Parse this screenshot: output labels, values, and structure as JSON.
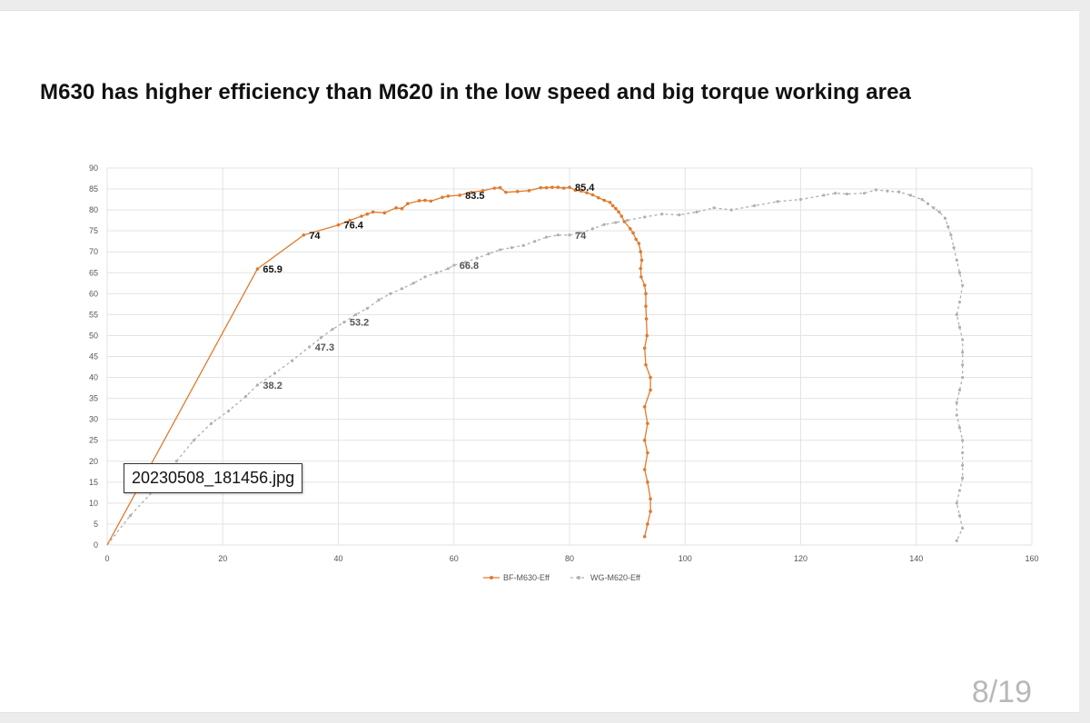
{
  "slide": {
    "title": "M630 has higher efficiency than M620 in the low speed and big torque working area",
    "page_counter": "8/19",
    "file_label": "20230508_181456.jpg"
  },
  "colors": {
    "m630": "#e07b2e",
    "m620": "#b0b0b0",
    "grid": "#e3e3e3"
  },
  "chart_data": {
    "type": "scatter",
    "title": "",
    "xlabel": "",
    "ylabel": "",
    "xlim": [
      0,
      160
    ],
    "ylim": [
      0,
      90
    ],
    "x_ticks": [
      0,
      20,
      40,
      60,
      80,
      100,
      120,
      140,
      160
    ],
    "y_ticks": [
      0,
      5,
      10,
      15,
      20,
      25,
      30,
      35,
      40,
      45,
      50,
      55,
      60,
      65,
      70,
      75,
      80,
      85,
      90
    ],
    "grid": true,
    "legend_position": "bottom",
    "series": [
      {
        "name": "BF-M630-Eff",
        "style": "line-markers",
        "points": [
          [
            0,
            0
          ],
          [
            26,
            65.9
          ],
          [
            34,
            74
          ],
          [
            40,
            76.4
          ],
          [
            42,
            77.5
          ],
          [
            44,
            78.5
          ],
          [
            45,
            79
          ],
          [
            46,
            79.5
          ],
          [
            48,
            79.3
          ],
          [
            50,
            80.5
          ],
          [
            51,
            80.3
          ],
          [
            52,
            81.5
          ],
          [
            54,
            82.2
          ],
          [
            55,
            82.3
          ],
          [
            56,
            82.1
          ],
          [
            58,
            83
          ],
          [
            59,
            83.3
          ],
          [
            61,
            83.5
          ],
          [
            63,
            84.2
          ],
          [
            65,
            84.6
          ],
          [
            67,
            85.2
          ],
          [
            68,
            85.3
          ],
          [
            69,
            84.2
          ],
          [
            71,
            84.4
          ],
          [
            73,
            84.6
          ],
          [
            75,
            85.3
          ],
          [
            76,
            85.3
          ],
          [
            77,
            85.4
          ],
          [
            78,
            85.4
          ],
          [
            79,
            85.2
          ],
          [
            80,
            85.4
          ],
          [
            81,
            84.7
          ],
          [
            82,
            84.5
          ],
          [
            83,
            84.1
          ],
          [
            84,
            83.6
          ],
          [
            85,
            82.9
          ],
          [
            86,
            82.3
          ],
          [
            87,
            81.8
          ],
          [
            87.5,
            81
          ],
          [
            88,
            80.3
          ],
          [
            88.5,
            79.5
          ],
          [
            89,
            78.5
          ],
          [
            89.5,
            77.2
          ],
          [
            90.5,
            75.5
          ],
          [
            91,
            74.5
          ],
          [
            91.5,
            73
          ],
          [
            92,
            72
          ],
          [
            92.3,
            70
          ],
          [
            92.5,
            68
          ],
          [
            92.3,
            66
          ],
          [
            92.4,
            64
          ],
          [
            93,
            62
          ],
          [
            93.2,
            60
          ],
          [
            93.2,
            57
          ],
          [
            93.3,
            54
          ],
          [
            93.4,
            50
          ],
          [
            93,
            47
          ],
          [
            93.2,
            43
          ],
          [
            94,
            40
          ],
          [
            94,
            37
          ],
          [
            93,
            33
          ],
          [
            93.5,
            29
          ],
          [
            93,
            25
          ],
          [
            93.5,
            22
          ],
          [
            93,
            18
          ],
          [
            93.5,
            15
          ],
          [
            94,
            11
          ],
          [
            94,
            8
          ],
          [
            93.5,
            5
          ],
          [
            93,
            2
          ]
        ],
        "data_labels": [
          {
            "x": 26,
            "y": 65.9,
            "text": "65.9"
          },
          {
            "x": 34,
            "y": 74,
            "text": "74"
          },
          {
            "x": 40,
            "y": 76.4,
            "text": "76.4"
          },
          {
            "x": 61,
            "y": 83.5,
            "text": "83.5"
          },
          {
            "x": 80,
            "y": 85.4,
            "text": "85.4"
          }
        ]
      },
      {
        "name": "WG-M620-Eff",
        "style": "dashed-markers",
        "points": [
          [
            0,
            0
          ],
          [
            4,
            7
          ],
          [
            8,
            13
          ],
          [
            12,
            20
          ],
          [
            15,
            25
          ],
          [
            18,
            29
          ],
          [
            21,
            32
          ],
          [
            24,
            35.5
          ],
          [
            26,
            38.2
          ],
          [
            29,
            41
          ],
          [
            32,
            44
          ],
          [
            35,
            47.3
          ],
          [
            37,
            49.5
          ],
          [
            39,
            51.5
          ],
          [
            41,
            53.2
          ],
          [
            43,
            55
          ],
          [
            45,
            56.5
          ],
          [
            47,
            58.5
          ],
          [
            49,
            60
          ],
          [
            51,
            61.2
          ],
          [
            53,
            62.5
          ],
          [
            55,
            64
          ],
          [
            57,
            65
          ],
          [
            59,
            66
          ],
          [
            60,
            66.8
          ],
          [
            62,
            67.5
          ],
          [
            64,
            68.5
          ],
          [
            66,
            69.5
          ],
          [
            68,
            70.5
          ],
          [
            70,
            71
          ],
          [
            72,
            71.5
          ],
          [
            74,
            72.5
          ],
          [
            76,
            73.5
          ],
          [
            78,
            74
          ],
          [
            80,
            74
          ],
          [
            82,
            74.5
          ],
          [
            84,
            75.5
          ],
          [
            86,
            76.5
          ],
          [
            88,
            77
          ],
          [
            90,
            77.5
          ],
          [
            93,
            78.3
          ],
          [
            96,
            79
          ],
          [
            99,
            78.8
          ],
          [
            102,
            79.5
          ],
          [
            105,
            80.5
          ],
          [
            108,
            80
          ],
          [
            112,
            81
          ],
          [
            116,
            82
          ],
          [
            120,
            82.5
          ],
          [
            124,
            83.5
          ],
          [
            126,
            84
          ],
          [
            128,
            83.8
          ],
          [
            131,
            84
          ],
          [
            133,
            84.8
          ],
          [
            135,
            84.5
          ],
          [
            137,
            84.3
          ],
          [
            139,
            83.5
          ],
          [
            141,
            82.5
          ],
          [
            142,
            81.5
          ],
          [
            143,
            80.5
          ],
          [
            144,
            79.5
          ],
          [
            145,
            78
          ],
          [
            145.5,
            76
          ],
          [
            146,
            74
          ],
          [
            146.5,
            71
          ],
          [
            147,
            68
          ],
          [
            147.5,
            65
          ],
          [
            148,
            62
          ],
          [
            147.5,
            58
          ],
          [
            147,
            55
          ],
          [
            147.5,
            52
          ],
          [
            148,
            49
          ],
          [
            148,
            46
          ],
          [
            148,
            43
          ],
          [
            148,
            40
          ],
          [
            147.5,
            37
          ],
          [
            147,
            34
          ],
          [
            147,
            31
          ],
          [
            147.5,
            28
          ],
          [
            148,
            25
          ],
          [
            148,
            22
          ],
          [
            148,
            19
          ],
          [
            148,
            16
          ],
          [
            147.5,
            13
          ],
          [
            147,
            10
          ],
          [
            147.5,
            7
          ],
          [
            148,
            4
          ],
          [
            147,
            1
          ]
        ],
        "data_labels": [
          {
            "x": 26,
            "y": 38.2,
            "text": "38.2"
          },
          {
            "x": 35,
            "y": 47.3,
            "text": "47.3"
          },
          {
            "x": 41,
            "y": 53.2,
            "text": "53.2"
          },
          {
            "x": 60,
            "y": 66.8,
            "text": "66.8"
          },
          {
            "x": 80,
            "y": 74,
            "text": "74"
          }
        ]
      }
    ]
  }
}
